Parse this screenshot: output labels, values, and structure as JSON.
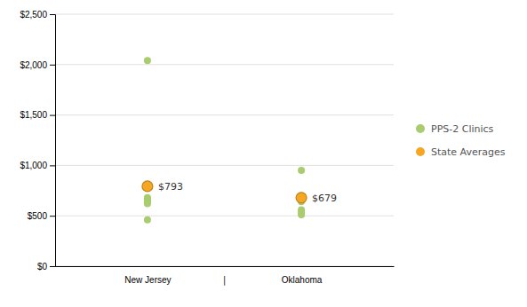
{
  "chart_data": {
    "type": "scatter",
    "categories": [
      "New Jersey",
      "Oklahoma"
    ],
    "annotations": [
      "|"
    ],
    "series": [
      {
        "name": "PPS-2 Clinics",
        "color": "#a8cc6e",
        "marker": "circle",
        "x": [
          "New Jersey",
          "New Jersey",
          "New Jersey",
          "New Jersey",
          "New Jersey",
          "New Jersey",
          "New Jersey",
          "New Jersey",
          "New Jersey",
          "New Jersey",
          "New Jersey",
          "Oklahoma",
          "Oklahoma",
          "Oklahoma",
          "Oklahoma",
          "Oklahoma",
          "Oklahoma",
          "Oklahoma"
        ],
        "values": [
          2040,
          793,
          680,
          670,
          665,
          660,
          650,
          640,
          630,
          620,
          460,
          950,
          679,
          660,
          640,
          560,
          530,
          510
        ]
      },
      {
        "name": "State Averages",
        "color": "#f5a623",
        "marker": "circle",
        "data_labels": true,
        "x": [
          "New Jersey",
          "Oklahoma"
        ],
        "values": [
          793,
          679
        ],
        "value_labels": [
          "$793",
          "$679"
        ]
      }
    ],
    "ylim": [
      0,
      2500
    ],
    "yticks": [
      {
        "value": 0,
        "label": "$0"
      },
      {
        "value": 500,
        "label": "$500"
      },
      {
        "value": 1000,
        "label": "$1,000"
      },
      {
        "value": 1500,
        "label": "$1,500"
      },
      {
        "value": 2000,
        "label": "$2,000"
      },
      {
        "value": 2500,
        "label": "$2,500"
      }
    ],
    "grid": true,
    "legend": "right"
  }
}
